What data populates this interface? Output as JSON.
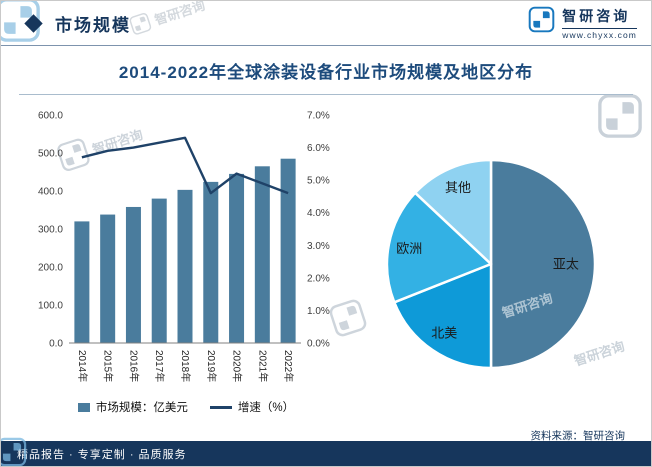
{
  "header": {
    "section_title": "市场规模",
    "brand_name": "智研咨询",
    "brand_site": "www.chyxx.com"
  },
  "title": "2014-2022年全球涂装设备行业市场规模及地区分布",
  "watermark_text": "智研咨询",
  "legend": {
    "bar_label": "市场规模：亿美元",
    "line_label": "增速（%）"
  },
  "source_note": "资料来源：智研咨询",
  "footer_text": "精品报告 · 专享定制 · 品质服务",
  "colors": {
    "navy": "#16365c",
    "title_blue": "#1d4b7c",
    "bar": "#4a7c9d",
    "line": "#1f4268",
    "brand_blue": "#1878be",
    "footer_bg": "#16365c"
  },
  "chart_data": [
    {
      "type": "bar",
      "categories": [
        "2014年",
        "2015年",
        "2016年",
        "2017年",
        "2018年",
        "2019年",
        "2020年",
        "2021年",
        "2022年"
      ],
      "series": [
        {
          "name": "市场规模：亿美元",
          "kind": "bar",
          "color": "#4a7c9d",
          "values": [
            320,
            338,
            358,
            380,
            403,
            424,
            445,
            465,
            485
          ]
        },
        {
          "name": "增速（%）",
          "kind": "line",
          "color": "#1f4268",
          "values": [
            5.7,
            5.9,
            6.0,
            6.15,
            6.3,
            4.6,
            5.2,
            4.9,
            4.6
          ]
        }
      ],
      "y_left": {
        "min": 0,
        "max": 600,
        "step": 100,
        "unit": "亿美元",
        "tick_format": "0.0"
      },
      "y_right": {
        "min": 0,
        "max": 7,
        "step": 1,
        "unit": "%",
        "tick_format": "0.0%"
      },
      "grid": false,
      "legend_position": "bottom"
    },
    {
      "type": "pie",
      "labels": [
        "亚太",
        "北美",
        "欧洲",
        "其他"
      ],
      "values": [
        50,
        19,
        18,
        13
      ],
      "unit": "%",
      "colors": [
        "#4a7c9d",
        "#0e9ad8",
        "#33b1e4",
        "#8fd2f1"
      ],
      "start_angle_deg": 0,
      "direction": "clockwise"
    }
  ]
}
